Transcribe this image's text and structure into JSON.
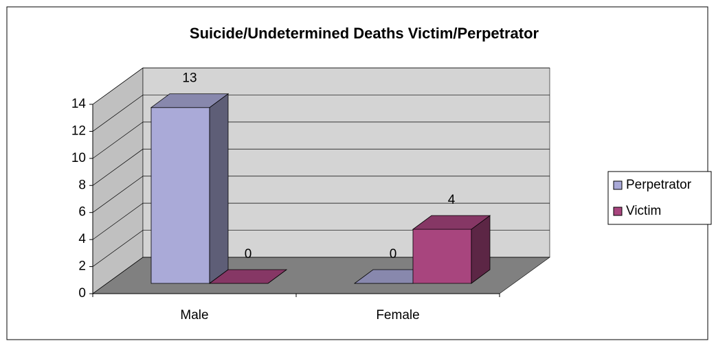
{
  "chart_data": {
    "type": "bar3d",
    "title": "Suicide/Undetermined Deaths Victim/Perpetrator",
    "categories": [
      "Male",
      "Female"
    ],
    "series": [
      {
        "name": "Perpetrator",
        "color": "#aaaad8",
        "values": [
          13,
          0
        ]
      },
      {
        "name": "Victim",
        "color": "#a8457e",
        "values": [
          0,
          4
        ]
      }
    ],
    "ylim": [
      0,
      14
    ],
    "yticks": [
      0,
      2,
      4,
      6,
      8,
      10,
      12,
      14
    ],
    "grid": true,
    "legend": "right"
  }
}
